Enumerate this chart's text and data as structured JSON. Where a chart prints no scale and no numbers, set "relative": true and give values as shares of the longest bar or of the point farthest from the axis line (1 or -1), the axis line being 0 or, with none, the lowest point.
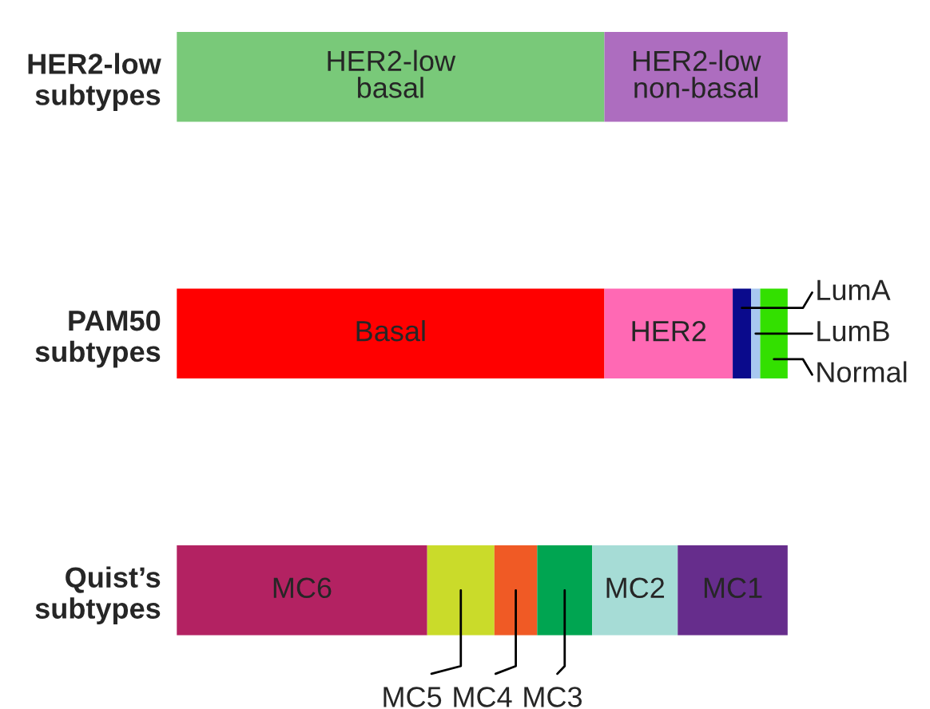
{
  "chart_data": {
    "type": "bar",
    "orientation": "horizontal",
    "stacked": true,
    "relative": true,
    "tick_labels": "y",
    "legend": false,
    "grid": false,
    "categories": [
      "HER2-low\nsubtypes",
      "PAM50\nsubtypes",
      "Quist’s\nsubtypes"
    ],
    "series": [
      {
        "name": "HER2-low\nbasal",
        "color": "#79c979",
        "values": [
          0.7,
          null,
          null
        ]
      },
      {
        "name": "HER2-low\nnon-basal",
        "color": "#ad6dbf",
        "values": [
          0.3,
          null,
          null
        ]
      },
      {
        "name": "Basal",
        "color": "#ff0000",
        "values": [
          null,
          0.7,
          null
        ]
      },
      {
        "name": "HER2",
        "color": "#ff69b4",
        "values": [
          null,
          0.21,
          null
        ]
      },
      {
        "name": "LumA",
        "color": "#0a0a8c",
        "values": [
          null,
          0.03,
          null
        ]
      },
      {
        "name": "LumB",
        "color": "#a8c8f0",
        "values": [
          null,
          0.015,
          null
        ]
      },
      {
        "name": "Normal",
        "color": "#33e000",
        "values": [
          null,
          0.045,
          null
        ]
      },
      {
        "name": "MC6",
        "color": "#b32262",
        "values": [
          null,
          null,
          0.41
        ]
      },
      {
        "name": "MC5",
        "color": "#cadb2a",
        "values": [
          null,
          null,
          0.11
        ]
      },
      {
        "name": "MC4",
        "color": "#f05a25",
        "values": [
          null,
          null,
          0.07
        ]
      },
      {
        "name": "MC3",
        "color": "#00a551",
        "values": [
          null,
          null,
          0.09
        ]
      },
      {
        "name": "MC2",
        "color": "#a6dcd6",
        "values": [
          null,
          null,
          0.14
        ]
      },
      {
        "name": "MC1",
        "color": "#662d8c",
        "values": [
          null,
          null,
          0.18
        ]
      }
    ]
  }
}
